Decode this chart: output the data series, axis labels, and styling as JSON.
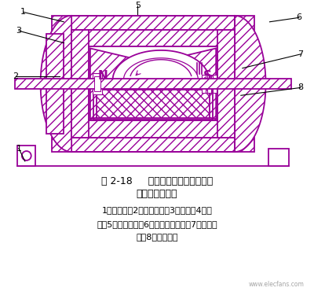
{
  "title_line1": "图 2-18     爪极式无刷交流发电机的",
  "title_line2": "结构原理及磁路",
  "legend_line1": "1－转子轴；2－磁轭托架；3－端盖；4－爪",
  "legend_line2": "极；5－定子铁心；6－非导磁联接环；7－励场绕",
  "legend_line3": "组；8－转子磁轭",
  "watermark": "www.elecfans.com",
  "purple": "#990099",
  "bg": "#ffffff",
  "fig_width": 4.0,
  "fig_height": 3.75
}
